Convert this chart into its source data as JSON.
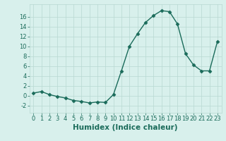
{
  "x": [
    0,
    1,
    2,
    3,
    4,
    5,
    6,
    7,
    8,
    9,
    10,
    11,
    12,
    13,
    14,
    15,
    16,
    17,
    18,
    19,
    20,
    21,
    22,
    23
  ],
  "y": [
    0.5,
    0.8,
    0.2,
    -0.2,
    -0.5,
    -1.0,
    -1.2,
    -1.5,
    -1.3,
    -1.4,
    0.2,
    5.0,
    10.0,
    12.5,
    14.8,
    16.2,
    17.2,
    17.0,
    14.5,
    8.5,
    6.2,
    5.0,
    5.0,
    11.0
  ],
  "xlabel": "Humidex (Indice chaleur)",
  "xlim": [
    -0.5,
    23.5
  ],
  "ylim": [
    -3.5,
    18.5
  ],
  "yticks": [
    -2,
    0,
    2,
    4,
    6,
    8,
    10,
    12,
    14,
    16
  ],
  "xticks": [
    0,
    1,
    2,
    3,
    4,
    5,
    6,
    7,
    8,
    9,
    10,
    11,
    12,
    13,
    14,
    15,
    16,
    17,
    18,
    19,
    20,
    21,
    22,
    23
  ],
  "line_color": "#1a6b5a",
  "marker": "D",
  "marker_size": 2.5,
  "bg_color": "#d8f0ec",
  "grid_color": "#b8d8d2",
  "tick_fontsize": 6,
  "xlabel_fontsize": 7.5,
  "linewidth": 1.0
}
